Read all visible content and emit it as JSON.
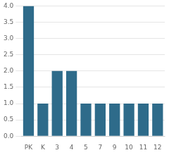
{
  "chart_data": {
    "type": "bar",
    "categories": [
      "PK",
      "K",
      "3",
      "4",
      "5",
      "7",
      "9",
      "10",
      "11",
      "12"
    ],
    "values": [
      4,
      1,
      2,
      2,
      1,
      1,
      1,
      1,
      1,
      1
    ],
    "color": "#2e6b8a",
    "ylim": [
      0,
      4
    ],
    "yticks": [
      {
        "value": 0,
        "label": "0.0"
      },
      0.5,
      {
        "value": 1,
        "label": "1.0"
      },
      1.5,
      {
        "value": 2,
        "label": "2.0"
      },
      2.5,
      {
        "value": 3,
        "label": "3.0"
      },
      3.5,
      {
        "value": 4,
        "label": "4.0"
      }
    ],
    "grid": true
  }
}
